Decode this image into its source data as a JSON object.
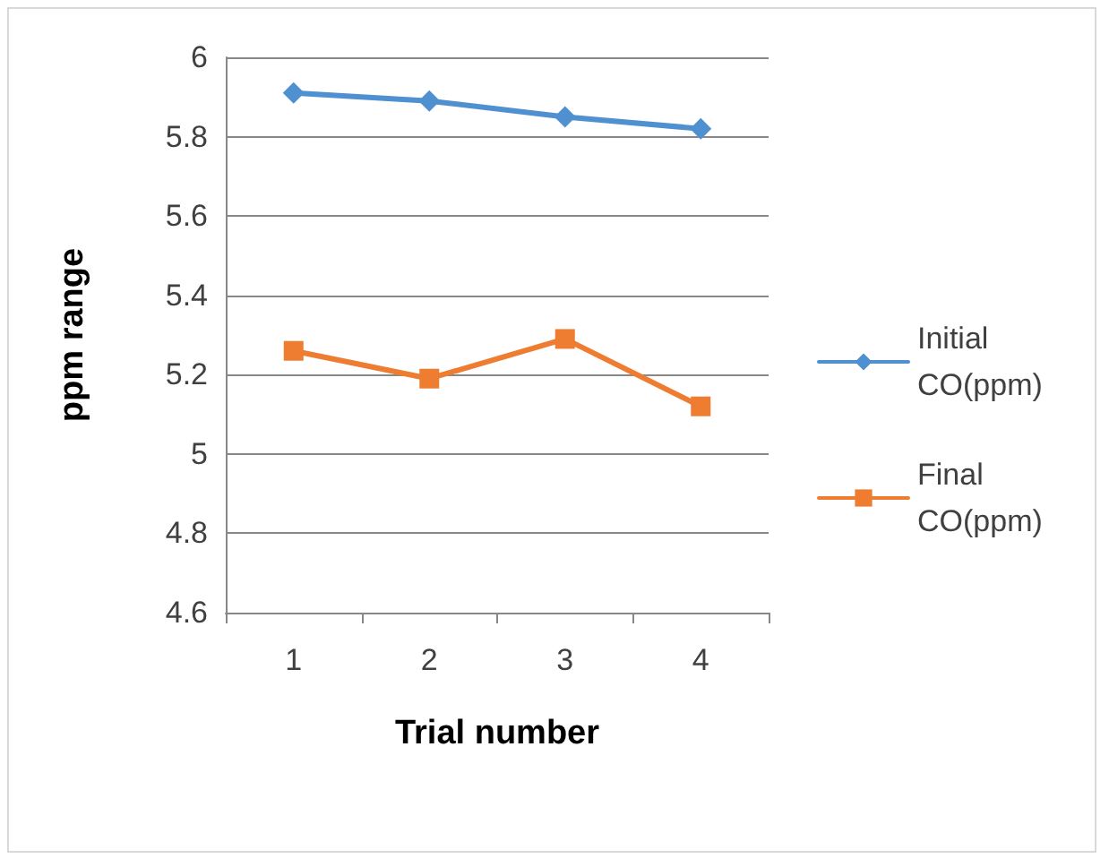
{
  "chart_data": {
    "type": "line",
    "xlabel": "Trial number",
    "ylabel": "ppm range",
    "categories": [
      "1",
      "2",
      "3",
      "4"
    ],
    "series": [
      {
        "name": "Initial CO(ppm)",
        "color": "#4f90d0",
        "marker": "diamond",
        "values": [
          5.91,
          5.89,
          5.85,
          5.82
        ]
      },
      {
        "name": "Final CO(ppm)",
        "color": "#ee7d31",
        "marker": "square",
        "values": [
          5.26,
          5.19,
          5.29,
          5.12
        ]
      }
    ],
    "ylim": [
      4.6,
      6
    ],
    "yticks": [
      4.6,
      4.8,
      5,
      5.2,
      5.4,
      5.6,
      5.8,
      6
    ],
    "grid": "y",
    "legend": "right",
    "line_style": "solid"
  }
}
